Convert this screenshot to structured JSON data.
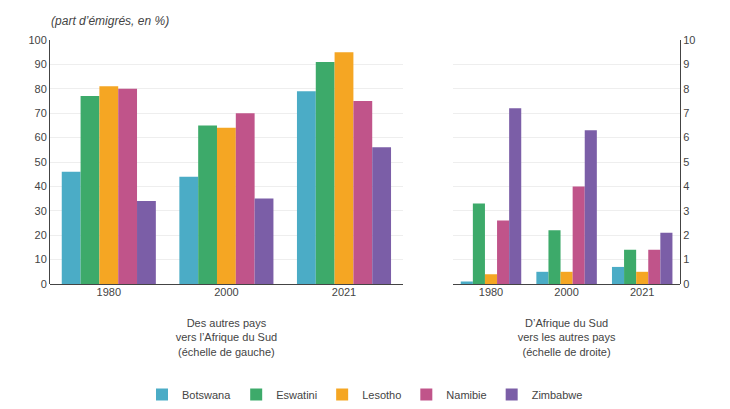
{
  "chart_data": [
    {
      "type": "bar",
      "subtitle": "(part d’émigrés, en %)",
      "xlabel": "Des autres pays\nvers l’Afrique du Sud\n(échelle de gauche)",
      "categories": [
        "1980",
        "2000",
        "2021"
      ],
      "series": [
        {
          "name": "Botswana",
          "color": "#4BACC6",
          "values": [
            46,
            44,
            79
          ]
        },
        {
          "name": "Eswatini",
          "color": "#3DAA6A",
          "values": [
            77,
            65,
            91
          ]
        },
        {
          "name": "Lesotho",
          "color": "#F5A623",
          "values": [
            81,
            64,
            95
          ]
        },
        {
          "name": "Namibie",
          "color": "#C0548A",
          "values": [
            80,
            70,
            75
          ]
        },
        {
          "name": "Zimbabwe",
          "color": "#7B5EA7",
          "values": [
            34,
            35,
            56
          ]
        }
      ],
      "ylim": [
        0,
        100
      ],
      "yticks": [
        0,
        10,
        20,
        30,
        40,
        50,
        60,
        70,
        80,
        90,
        100
      ],
      "grid": true,
      "legend": "bottom"
    },
    {
      "type": "bar",
      "xlabel": "D’Afrique du Sud\nvers les autres pays\n(échelle de droite)",
      "categories": [
        "1980",
        "2000",
        "2021"
      ],
      "series": [
        {
          "name": "Botswana",
          "color": "#4BACC6",
          "values": [
            0.1,
            0.5,
            0.7
          ]
        },
        {
          "name": "Eswatini",
          "color": "#3DAA6A",
          "values": [
            3.3,
            2.2,
            1.4
          ]
        },
        {
          "name": "Lesotho",
          "color": "#F5A623",
          "values": [
            0.4,
            0.5,
            0.5
          ]
        },
        {
          "name": "Namibie",
          "color": "#C0548A",
          "values": [
            2.6,
            4.0,
            1.4
          ]
        },
        {
          "name": "Zimbabwe",
          "color": "#7B5EA7",
          "values": [
            7.2,
            6.3,
            2.1
          ]
        }
      ],
      "ylim": [
        0,
        10
      ],
      "yticks": [
        0,
        1,
        2,
        3,
        4,
        5,
        6,
        7,
        8,
        9,
        10
      ],
      "grid": true
    }
  ]
}
